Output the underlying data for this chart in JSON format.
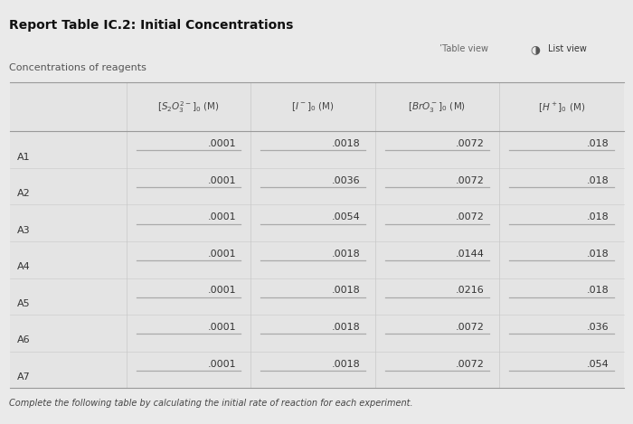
{
  "title": "Report Table IC.2: Initial Concentrations",
  "section_label": "Concentrations of reagents",
  "col_headers_math": [
    "$[S_2O_3^{2-}]_0$ (M)",
    "$[I^-]_0$ (M)",
    "$[BrO_3^-]_0$ (M)",
    "$[H^+]_0$ (M)"
  ],
  "row_labels": [
    "A1",
    "A2",
    "A3",
    "A4",
    "A5",
    "A6",
    "A7"
  ],
  "data": [
    [
      ".0001",
      ".0018",
      ".0072",
      ".018"
    ],
    [
      ".0001",
      ".0036",
      ".0072",
      ".018"
    ],
    [
      ".0001",
      ".0054",
      ".0072",
      ".018"
    ],
    [
      ".0001",
      ".0018",
      ".0144",
      ".018"
    ],
    [
      ".0001",
      ".0018",
      ".0216",
      ".018"
    ],
    [
      ".0001",
      ".0018",
      ".0072",
      ".036"
    ],
    [
      ".0001",
      ".0018",
      ".0072",
      ".054"
    ]
  ],
  "footer_text": "Complete the following table by calculating the initial rate of reaction for each experiment.",
  "bg_color": "#eaeaea",
  "table_bg": "#e4e4e4",
  "col_divider_color": "#c8c8c8",
  "row_divider_color": "#c8c8c8",
  "underline_color": "#aaaaaa",
  "text_color": "#333333",
  "label_color": "#555555",
  "title_color": "#111111",
  "header_text_color": "#444444"
}
